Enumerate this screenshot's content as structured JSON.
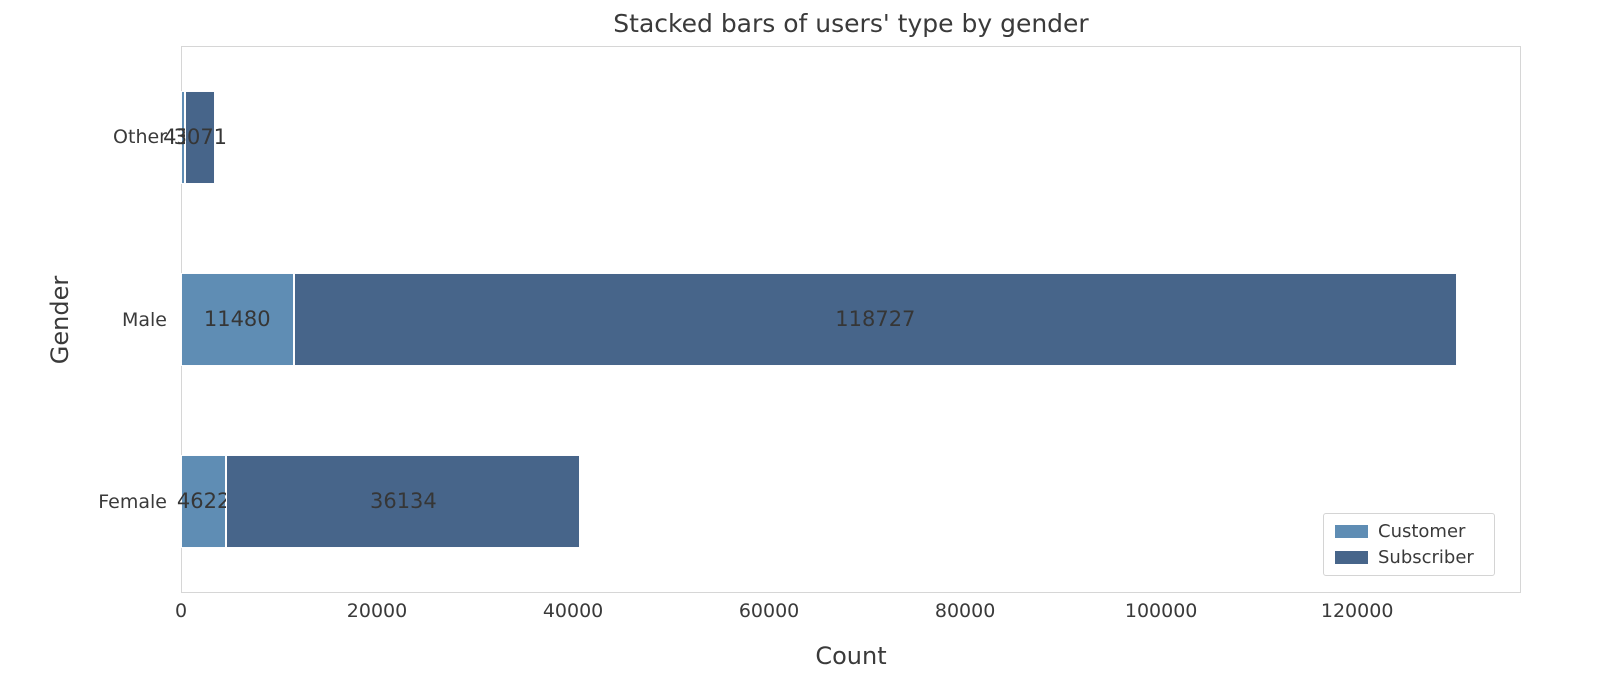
{
  "figure_title": "Stacked bars of users' type by gender",
  "chart_data": {
    "type": "bar",
    "orientation": "horizontal",
    "stacked": true,
    "title": "Stacked bars of users' type by gender",
    "xlabel": "Count",
    "ylabel": "Gender",
    "categories": [
      "Other",
      "Male",
      "Female"
    ],
    "series": [
      {
        "name": "Customer",
        "color": "#5f8db4",
        "values": [
          438,
          11480,
          4622
        ]
      },
      {
        "name": "Subscriber",
        "color": "#47658a",
        "values": [
          3071,
          118727,
          36134
        ]
      }
    ],
    "stack_totals": [
      3509,
      130207,
      40756
    ],
    "x_ticks": [
      0,
      20000,
      40000,
      60000,
      80000,
      100000,
      120000
    ],
    "xlim": [
      0,
      136717
    ],
    "grid": false,
    "value_labels": true,
    "legend": {
      "position": "lower right",
      "entries": [
        "Customer",
        "Subscriber"
      ]
    }
  },
  "colors": {
    "customer": "#5f8db4",
    "subscriber": "#47658a",
    "text": "#3a3a3a",
    "spine": "#d6d6d6",
    "background": "#ffffff"
  }
}
